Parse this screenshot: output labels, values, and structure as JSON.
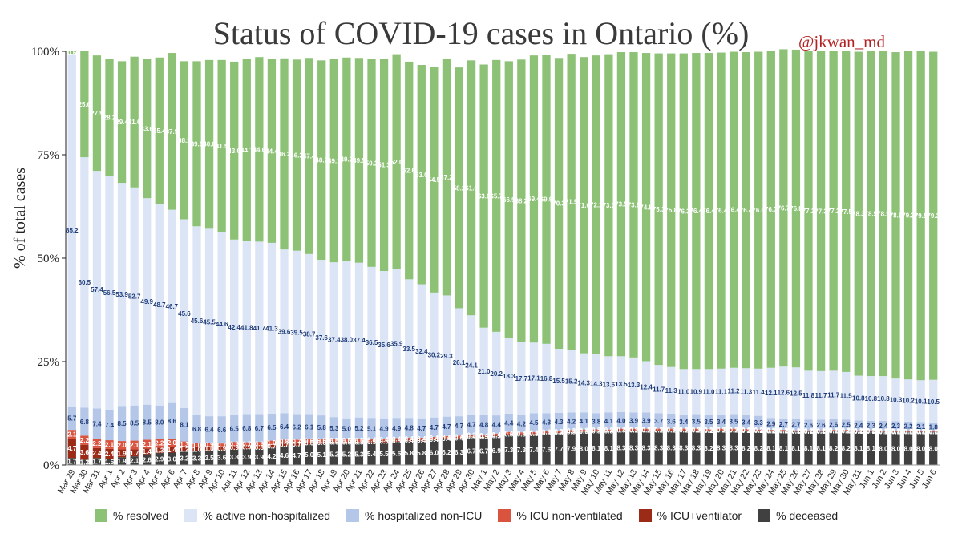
{
  "chart_data": {
    "type": "bar",
    "stacked": true,
    "title": "Status of COVID-19 cases in Ontario (%)",
    "credit": "@jkwan_md",
    "ylabel": "% of total cases",
    "ylim": [
      0,
      100
    ],
    "yticks": [
      "0%",
      "25%",
      "50%",
      "75%",
      "100%"
    ],
    "grid": false,
    "legend_position": "bottom",
    "categories": [
      "Mar 29",
      "Mar 30",
      "Mar 31",
      "Apr 1",
      "Apr 2",
      "Apr 3",
      "Apr 4",
      "Apr 5",
      "Apr 6",
      "Apr 7",
      "Apr 8",
      "Apr 9",
      "Apr 10",
      "Apr 11",
      "Apr 12",
      "Apr 13",
      "Apr 14",
      "Apr 15",
      "Apr 16",
      "Apr 17",
      "Apr 18",
      "Apr 19",
      "Apr 20",
      "Apr 21",
      "Apr 22",
      "Apr 23",
      "Apr 24",
      "Apr 25",
      "Apr 26",
      "Apr 27",
      "Apr 28",
      "Apr 29",
      "Apr 30",
      "May 1",
      "May 2",
      "May 3",
      "May 4",
      "May 5",
      "May 6",
      "May 7",
      "May 8",
      "May 9",
      "May 10",
      "May 11",
      "May 12",
      "May 13",
      "May 14",
      "May 15",
      "May 16",
      "May 17",
      "May 18",
      "May 19",
      "May 20",
      "May 21",
      "May 22",
      "May 23",
      "May 24",
      "May 25",
      "May 26",
      "May 27",
      "May 28",
      "May 29",
      "May 30",
      "May 31",
      "Jun 1",
      "Jun 2",
      "Jun 3",
      "Jun 4",
      "Jun 5",
      "Jun 6"
    ],
    "series": [
      {
        "name": "% deceased",
        "color": "#404040",
        "label_color": "#ffffff",
        "values": [
          1.7,
          1.3,
          1.7,
          1.5,
          1.9,
          2.1,
          2.6,
          2.9,
          3.0,
          3.2,
          3.3,
          3.5,
          3.6,
          3.8,
          3.9,
          3.9,
          4.2,
          4.6,
          4.7,
          5.0,
          5.1,
          5.2,
          5.2,
          5.3,
          5.4,
          5.5,
          5.6,
          5.8,
          5.8,
          6.0,
          6.2,
          6.3,
          6.7,
          6.7,
          6.9,
          7.3,
          7.3,
          7.4,
          7.6,
          7.7,
          7.9,
          8.0,
          8.1,
          8.1,
          8.3,
          8.3,
          8.3,
          8.3,
          8.3,
          8.3,
          8.3,
          8.2,
          8.3,
          8.3,
          8.2,
          8.2,
          8.1,
          8.1,
          8.1,
          8.1,
          8.1,
          8.2,
          8.2,
          8.1,
          8.1,
          8.0,
          8.0,
          8.0,
          8.0,
          8.0
        ]
      },
      {
        "name": "% ICU+ventilator",
        "color": "#9b2a17",
        "label_color": "#ffffff",
        "values": [
          4.7,
          3.6,
          2.4,
          2.4,
          1.9,
          1.7,
          1.4,
          1.3,
          1.4,
          1.2,
          1.0,
          1.0,
          0.9,
          0.9,
          0.9,
          0.8,
          0.7,
          0.7,
          0.7,
          0.6,
          0.6,
          0.6,
          0.6,
          0.5,
          0.5,
          0.5,
          0.5,
          0.4,
          0.4,
          0.4,
          0.4,
          0.4,
          0.4,
          0.3,
          0.3,
          0.3,
          0.3,
          0.3,
          0.3,
          0.3,
          0.3,
          0.3,
          0.3,
          0.3,
          0.3,
          0.2,
          0.2,
          0.2,
          0.2,
          0.2,
          0.2,
          0.2,
          0.2,
          0.2,
          0.2,
          0.2,
          0.2,
          0.2,
          0.1,
          0.1,
          0.1,
          0.1,
          0.1,
          0.1,
          0.1,
          0.1,
          0.1,
          0.1,
          0.1,
          0.1
        ]
      },
      {
        "name": "% ICU non-ventilated",
        "color": "#d9533f",
        "label_color": "#ffffff",
        "values": [
          2.1,
          2.2,
          2.2,
          2.1,
          2.0,
          2.1,
          2.1,
          2.2,
          2.0,
          1.3,
          1.0,
          0.9,
          0.7,
          0.9,
          0.7,
          0.9,
          1.0,
          0.8,
          0.7,
          0.6,
          0.5,
          0.5,
          0.5,
          0.5,
          0.4,
          0.4,
          0.4,
          0.4,
          0.4,
          0.4,
          0.4,
          0.4,
          0.3,
          0.4,
          0.4,
          0.4,
          0.3,
          0.3,
          0.3,
          0.3,
          0.3,
          0.3,
          0.3,
          0.2,
          0.2,
          0.3,
          0.3,
          0.3,
          0.3,
          0.3,
          0.3,
          0.3,
          0.3,
          0.3,
          0.3,
          0.2,
          0.2,
          0.2,
          0.2,
          0.2,
          0.2,
          0.2,
          0.2,
          0.2,
          0.2,
          0.2,
          0.2,
          0.2,
          0.2,
          0.2
        ]
      },
      {
        "name": "% hospitalized non-ICU",
        "color": "#b5c7e8",
        "label_color": "#1f3c78",
        "values": [
          5.7,
          6.8,
          7.4,
          7.4,
          8.5,
          8.5,
          8.5,
          8.0,
          8.6,
          8.1,
          6.8,
          6.4,
          6.6,
          6.5,
          6.8,
          6.7,
          6.5,
          6.4,
          6.2,
          6.1,
          5.8,
          5.3,
          5.0,
          5.2,
          5.1,
          4.9,
          4.9,
          4.8,
          4.7,
          4.7,
          4.7,
          4.7,
          4.7,
          4.8,
          4.4,
          4.4,
          4.2,
          4.5,
          4.3,
          4.3,
          4.2,
          4.1,
          3.8,
          4.1,
          4.0,
          3.9,
          3.9,
          3.7,
          3.6,
          3.4,
          3.5,
          3.5,
          3.4,
          3.5,
          3.4,
          3.3,
          2.9,
          2.7,
          2.7,
          2.6,
          2.6,
          2.6,
          2.5,
          2.4,
          2.3,
          2.4,
          2.3,
          2.2,
          2.1,
          1.8
        ]
      },
      {
        "name": "% active non-hospitalized",
        "color": "#dce5f6",
        "label_color": "#1f3c78",
        "values": [
          85.2,
          60.5,
          57.4,
          56.5,
          53.9,
          52.7,
          49.9,
          48.7,
          46.7,
          45.6,
          45.6,
          45.5,
          44.6,
          42.4,
          41.8,
          41.7,
          41.3,
          39.6,
          39.5,
          38.7,
          37.6,
          37.4,
          38.0,
          37.4,
          36.5,
          35.6,
          35.9,
          33.5,
          32.4,
          30.2,
          29.3,
          26.1,
          24.1,
          21.0,
          20.2,
          18.3,
          17.7,
          17.1,
          16.8,
          15.5,
          15.2,
          14.3,
          14.3,
          13.6,
          13.5,
          13.3,
          12.4,
          11.7,
          11.3,
          11.0,
          10.9,
          11.0,
          11.1,
          11.2,
          11.3,
          11.4,
          12.1,
          12.6,
          12.5,
          11.8,
          11.7,
          11.7,
          11.5,
          10.8,
          10.8,
          10.8,
          10.3,
          10.2,
          10.1,
          10.5
        ]
      },
      {
        "name": "% resolved",
        "color": "#8cc176",
        "label_color": "#ffffff",
        "values": [
          0.6,
          25.6,
          27.9,
          28.2,
          29.4,
          31.6,
          33.6,
          35.4,
          37.9,
          38.2,
          39.9,
          40.6,
          41.5,
          43.0,
          44.1,
          44.6,
          44.4,
          46.2,
          46.2,
          47.4,
          48.2,
          49.1,
          49.2,
          49.5,
          50.2,
          51.3,
          52.0,
          52.6,
          53.0,
          54.5,
          57.2,
          58.2,
          61.6,
          63.6,
          65.7,
          66.9,
          68.2,
          69.4,
          69.9,
          70.3,
          71.5,
          71.6,
          72.2,
          73.0,
          73.5,
          73.8,
          74.5,
          75.3,
          75.8,
          76.3,
          76.4,
          76.4,
          76.4,
          76.4,
          76.4,
          76.6,
          76.7,
          76.7,
          76.8,
          77.2,
          77.3,
          77.2,
          77.5,
          78.3,
          78.5,
          78.5,
          78.9,
          79.3,
          79.5,
          79.3
        ]
      }
    ]
  }
}
